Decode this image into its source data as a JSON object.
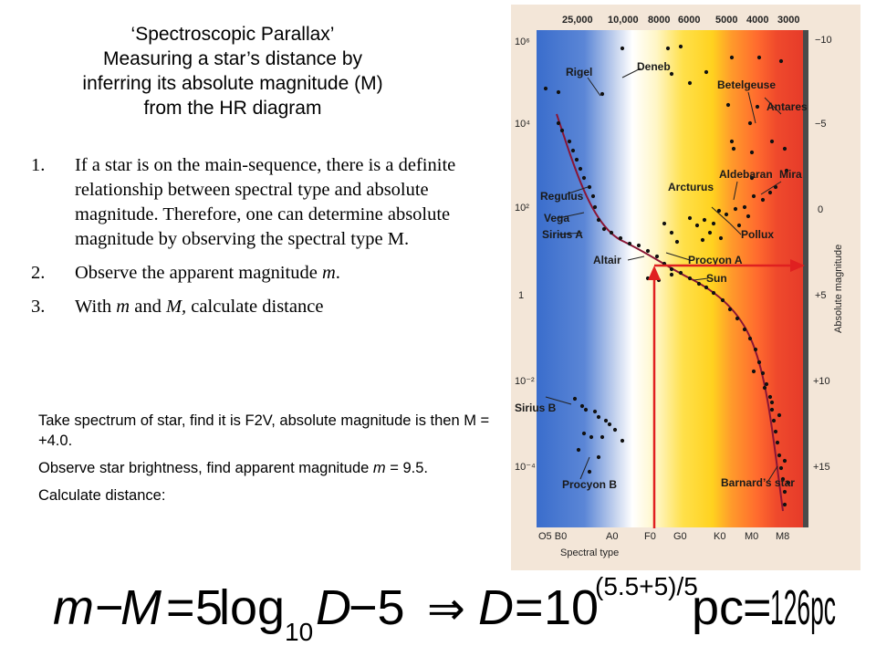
{
  "title": {
    "line1": "‘Spectroscopic Parallax’",
    "line2": "Measuring a star’s distance by",
    "line3": "inferring its absolute magnitude (M)",
    "line4": "from the HR diagram"
  },
  "steps": [
    {
      "num": "1.",
      "text": "If a star is on the main-sequence, there is a definite relationship between spectral type and absolute magnitude. Therefore, one can determine absolute magnitude by observing the spectral type M."
    },
    {
      "num": "2.",
      "pre": "Observe the apparent magnitude ",
      "var": "m",
      "post": "."
    },
    {
      "num": "3.",
      "pre": "With ",
      "var1": "m",
      "mid": " and ",
      "var2": "M,",
      "post": " calculate distance"
    }
  ],
  "notes": {
    "p1": "Take spectrum of star, find it is F2V, absolute magnitude is then M = +4.0.",
    "p2_pre": "Observe star brightness, find apparent magnitude ",
    "p2_var": "m",
    "p2_post": " = 9.5.",
    "p3": "Calculate distance:"
  },
  "formula": {
    "lhs_m": "m",
    "minus": "−",
    "lhs_M": "M",
    "eq1": "=",
    "coef": "5",
    "log": "log",
    "log_base": "10",
    "D": "D",
    "minus5": "−5",
    "implies": "⇒",
    "D2": "D",
    "eq2": "=",
    "ten": "10",
    "exponent": "(5.5+5)/5",
    "pc1": "pc",
    "eq3": "=",
    "result": "126pc"
  },
  "hr_diagram": {
    "top_temps": [
      "25,000",
      "10,000",
      "8000",
      "6000",
      "5000",
      "4000",
      "3000"
    ],
    "left_ticks": [
      "10⁶",
      "10⁴",
      "10²",
      "1",
      "10⁻²",
      "10⁻⁴"
    ],
    "right_ticks": [
      "−10",
      "−5",
      "0",
      "+5",
      "+10",
      "+15"
    ],
    "right_axis_label": "Absolute magnitude",
    "bottom_classes": [
      "O5 B0",
      "A0",
      "F0",
      "G0",
      "K0",
      "M0",
      "M8"
    ],
    "bottom_label": "Spectral type",
    "star_labels": {
      "rigel": "Rigel",
      "deneb": "Deneb",
      "betelgeuse": "Betelgeuse",
      "antares": "Antares",
      "arcturus": "Arcturus",
      "aldebaran": "Aldebaran",
      "mira": "Mira",
      "regulus": "Regulus",
      "vega": "Vega",
      "sirius_a": "Sirius A",
      "pollux": "Pollux",
      "altair": "Altair",
      "procyon_a": "Procyon A",
      "sun": "Sun",
      "sirius_b": "Sirius B",
      "procyon_b": "Procyon B",
      "barnards": "Barnard’s star"
    },
    "colors": {
      "arrow": "#e02020",
      "curve": "#8a1535"
    }
  }
}
